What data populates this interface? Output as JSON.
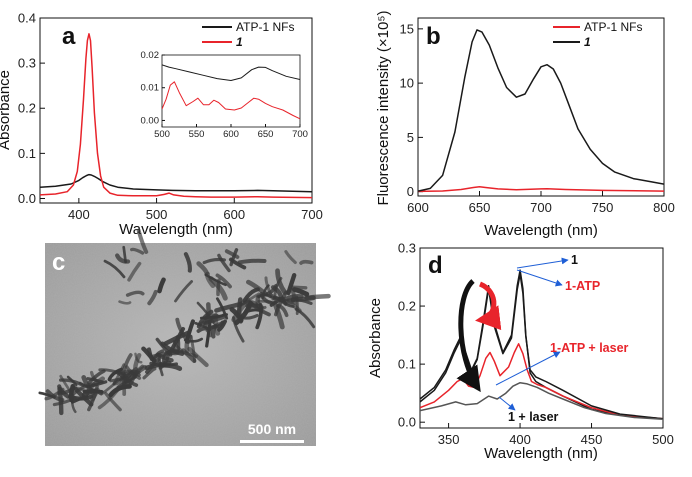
{
  "colors": {
    "black": "#1a1a1a",
    "red": "#e8242b",
    "gray": "#555555",
    "blue": "#1f5fd6"
  },
  "chart_data": [
    {
      "id": "a",
      "type": "line",
      "panel_label": "a",
      "xlabel": "Wavelength (nm)",
      "ylabel": "Absorbance",
      "xlim": [
        350,
        700
      ],
      "ylim": [
        -0.01,
        0.4
      ],
      "xticks": [
        400,
        500,
        600,
        700
      ],
      "yticks": [
        0.0,
        0.1,
        0.2,
        0.3,
        0.4
      ],
      "ytick_labels": [
        "0.0",
        "0.1",
        "0.2",
        "0.3",
        "0.4"
      ],
      "legend": {
        "position": "top-right",
        "entries": [
          "ATP-1 NFs",
          "1"
        ]
      },
      "series": [
        {
          "name": "ATP-1 NFs",
          "color": "black",
          "x": [
            350,
            370,
            390,
            400,
            405,
            410,
            413,
            416,
            420,
            425,
            430,
            440,
            450,
            470,
            500,
            520,
            550,
            600,
            630,
            650,
            700
          ],
          "y": [
            0.025,
            0.027,
            0.032,
            0.04,
            0.046,
            0.051,
            0.053,
            0.052,
            0.049,
            0.044,
            0.038,
            0.03,
            0.025,
            0.021,
            0.019,
            0.018,
            0.017,
            0.017,
            0.018,
            0.017,
            0.015
          ]
        },
        {
          "name": "1",
          "color": "red",
          "x": [
            350,
            370,
            385,
            393,
            398,
            402,
            406,
            409,
            411,
            413,
            415,
            417,
            420,
            424,
            428,
            432,
            440,
            450,
            470,
            500,
            510,
            516,
            522,
            535,
            550,
            570,
            600,
            630,
            650,
            700
          ],
          "y": [
            0.008,
            0.01,
            0.015,
            0.03,
            0.06,
            0.12,
            0.22,
            0.31,
            0.35,
            0.365,
            0.35,
            0.29,
            0.19,
            0.1,
            0.05,
            0.025,
            0.012,
            0.007,
            0.006,
            0.006,
            0.009,
            0.012,
            0.008,
            0.005,
            0.004,
            0.003,
            0.003,
            0.004,
            0.003,
            0.002
          ]
        }
      ],
      "inset": {
        "xlim": [
          500,
          700
        ],
        "ylim": [
          -0.002,
          0.02
        ],
        "xticks": [
          500,
          550,
          600,
          650,
          700
        ],
        "yticks": [
          0.0,
          0.01,
          0.02
        ],
        "ytick_labels": [
          "0.00",
          "0.01",
          "0.02"
        ],
        "series": [
          {
            "color": "black",
            "x": [
              500,
              510,
              520,
              540,
              560,
              580,
              600,
              615,
              630,
              640,
              650,
              660,
              680,
              700
            ],
            "y": [
              0.017,
              0.0163,
              0.0158,
              0.0148,
              0.0138,
              0.0128,
              0.0122,
              0.013,
              0.0155,
              0.0163,
              0.0162,
              0.0152,
              0.0135,
              0.0125
            ]
          },
          {
            "color": "red",
            "x": [
              500,
              506,
              512,
              518,
              525,
              535,
              545,
              552,
              560,
              568,
              575,
              582,
              592,
              605,
              615,
              625,
              633,
              640,
              650,
              660,
              675,
              690,
              700
            ],
            "y": [
              0.0035,
              0.0065,
              0.0108,
              0.0118,
              0.0085,
              0.0045,
              0.0058,
              0.0068,
              0.0048,
              0.0048,
              0.0062,
              0.0055,
              0.0035,
              0.0032,
              0.0038,
              0.0055,
              0.0068,
              0.0065,
              0.0052,
              0.0042,
              0.0032,
              0.0015,
              0.0005
            ]
          }
        ]
      }
    },
    {
      "id": "b",
      "type": "line",
      "panel_label": "b",
      "xlabel": "Wavelength (nm)",
      "ylabel": "Fluorescence intensity (×10⁵)",
      "xlim": [
        600,
        800
      ],
      "ylim": [
        -0.4,
        16
      ],
      "xticks": [
        600,
        650,
        700,
        750,
        800
      ],
      "yticks": [
        0,
        5,
        10,
        15
      ],
      "legend": {
        "position": "top-right",
        "entries": [
          "ATP-1 NFs",
          "1"
        ]
      },
      "series": [
        {
          "name": "ATP-1 NFs",
          "color": "red",
          "x": [
            600,
            620,
            635,
            645,
            650,
            655,
            665,
            680,
            700,
            705,
            720,
            750,
            800
          ],
          "y": [
            0.02,
            0.06,
            0.2,
            0.38,
            0.45,
            0.38,
            0.25,
            0.18,
            0.25,
            0.27,
            0.2,
            0.12,
            0.05
          ]
        },
        {
          "name": "1",
          "color": "black",
          "x": [
            600,
            610,
            620,
            630,
            638,
            644,
            648,
            652,
            658,
            665,
            672,
            680,
            687,
            694,
            700,
            705,
            710,
            716,
            722,
            730,
            740,
            750,
            760,
            775,
            790,
            800
          ],
          "y": [
            0.05,
            0.3,
            1.5,
            5.5,
            10.5,
            13.8,
            14.9,
            14.7,
            13.5,
            11.4,
            9.6,
            8.7,
            9.0,
            10.4,
            11.5,
            11.7,
            11.3,
            10.0,
            8.2,
            5.8,
            3.9,
            2.6,
            1.8,
            1.2,
            0.9,
            0.7
          ]
        }
      ]
    },
    {
      "id": "d",
      "type": "line",
      "panel_label": "d",
      "xlabel": "Wavelength (nm)",
      "ylabel": "Absorbance",
      "xlim": [
        330,
        500
      ],
      "ylim": [
        -0.01,
        0.3
      ],
      "xticks": [
        350,
        400,
        450,
        500
      ],
      "yticks": [
        0.0,
        0.1,
        0.2,
        0.3
      ],
      "ytick_labels": [
        "0.0",
        "0.1",
        "0.2",
        "0.3"
      ],
      "annotations": [
        {
          "text": "1",
          "color": "black"
        },
        {
          "text": "1-ATP",
          "color": "red"
        },
        {
          "text": "1-ATP + laser",
          "color": "red"
        },
        {
          "text": "1 + laser",
          "color": "black"
        }
      ],
      "series": [
        {
          "name": "1",
          "color": "black",
          "x": [
            330,
            340,
            348,
            354,
            358,
            362,
            366,
            370,
            374,
            378,
            382,
            388,
            394,
            398,
            400,
            402,
            404,
            407,
            411,
            418,
            430,
            450,
            470,
            500
          ],
          "y": [
            0.04,
            0.06,
            0.09,
            0.125,
            0.145,
            0.12,
            0.09,
            0.11,
            0.17,
            0.235,
            0.17,
            0.12,
            0.15,
            0.235,
            0.262,
            0.23,
            0.15,
            0.085,
            0.07,
            0.06,
            0.045,
            0.022,
            0.012,
            0.006
          ]
        },
        {
          "name": "1-ATP",
          "color": "red",
          "x": [
            330,
            340,
            350,
            356,
            360,
            364,
            368,
            372,
            376,
            379,
            382,
            386,
            392,
            396,
            399,
            402,
            405,
            408,
            412,
            418,
            430,
            450,
            470,
            500
          ],
          "y": [
            0.025,
            0.035,
            0.055,
            0.07,
            0.075,
            0.062,
            0.06,
            0.08,
            0.11,
            0.12,
            0.105,
            0.08,
            0.095,
            0.12,
            0.135,
            0.118,
            0.09,
            0.07,
            0.065,
            0.06,
            0.045,
            0.025,
            0.012,
            0.006
          ]
        },
        {
          "name": "1-ATP + laser",
          "color": "black",
          "x": [
            330,
            340,
            348,
            354,
            358,
            362,
            366,
            370,
            374,
            378,
            382,
            388,
            394,
            398,
            400,
            402,
            404,
            407,
            411,
            418,
            430,
            450,
            470,
            500
          ],
          "y": [
            0.035,
            0.055,
            0.085,
            0.12,
            0.14,
            0.115,
            0.088,
            0.108,
            0.165,
            0.23,
            0.165,
            0.118,
            0.145,
            0.228,
            0.255,
            0.222,
            0.148,
            0.09,
            0.078,
            0.07,
            0.055,
            0.028,
            0.014,
            0.006
          ]
        },
        {
          "name": "1 + laser",
          "color": "gray",
          "x": [
            330,
            345,
            355,
            362,
            370,
            378,
            384,
            390,
            395,
            400,
            405,
            412,
            420,
            430,
            445,
            460,
            480,
            500
          ],
          "y": [
            0.02,
            0.028,
            0.035,
            0.03,
            0.032,
            0.045,
            0.04,
            0.05,
            0.062,
            0.068,
            0.066,
            0.06,
            0.05,
            0.04,
            0.025,
            0.015,
            0.008,
            0.005
          ]
        }
      ]
    }
  ],
  "panel_c": {
    "panel_label": "c",
    "scale_bar_label": "500 nm"
  }
}
